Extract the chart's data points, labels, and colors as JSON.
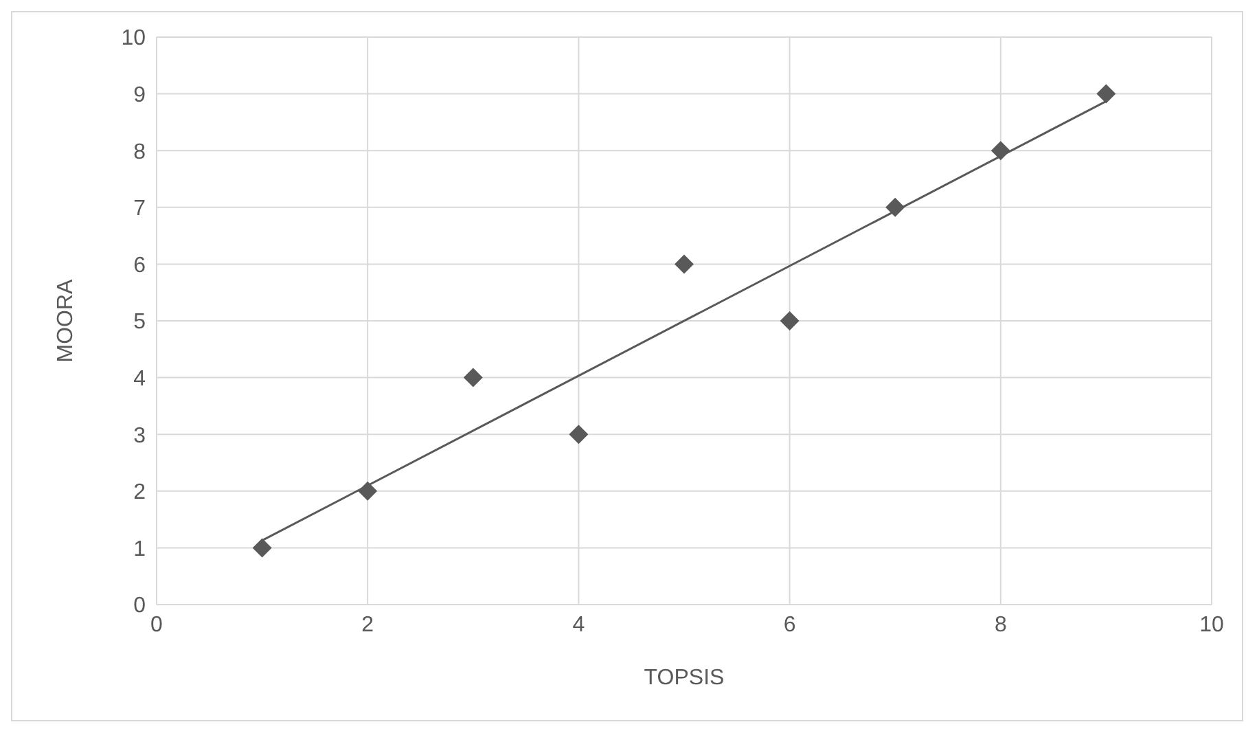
{
  "chart_data": {
    "type": "scatter",
    "xlabel": "TOPSIS",
    "ylabel": "MOORA",
    "x": [
      1,
      2,
      3,
      4,
      5,
      6,
      7,
      8,
      9
    ],
    "series": [
      {
        "color": "#595959",
        "marker": "diamond",
        "values": [
          1,
          2,
          4,
          3,
          6,
          5,
          7,
          8,
          9
        ]
      },
      {
        "type": "line",
        "color": "#595959",
        "marker": "none",
        "x": [
          1,
          9
        ],
        "values": [
          1.13,
          8.87
        ]
      }
    ],
    "xlim": [
      0,
      10
    ],
    "xticks": [
      0,
      2,
      4,
      6,
      8,
      10
    ],
    "ylim": [
      0,
      10
    ],
    "yticks": [
      0,
      1,
      2,
      3,
      4,
      5,
      6,
      7,
      8,
      9,
      10
    ],
    "grid": true
  }
}
